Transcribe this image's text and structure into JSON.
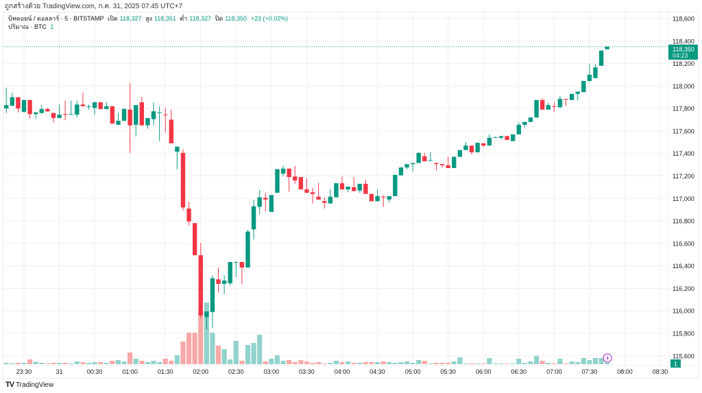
{
  "header": {
    "caption": "ถูกสร้างด้วย TradingView.com, ก.ค. 31, 2025 07:45 UTC+7"
  },
  "legend": {
    "symbol": "บิทคอยน์ / ดอลลาร์ · 5 · BITSTAMP",
    "open_label": "เปิด",
    "open": "118,327",
    "high_label": "สูง",
    "high": "118,351",
    "low_label": "ต่ำ",
    "low": "118,327",
    "close_label": "ปิด",
    "close": "118,350",
    "change": "+23 (+0.02%)",
    "volume_label": "ปริมาณ · BTC",
    "volume": "1"
  },
  "price_tag": {
    "price": "118,350",
    "countdown": "04:23"
  },
  "volume_tag": "1",
  "footer": {
    "brand": "TradingView"
  },
  "colors": {
    "up": "#089981",
    "down": "#F23645",
    "vol_up": "#92D2CC",
    "vol_down": "#F7A9A7",
    "alert": "#B24FD6"
  },
  "chart_data": {
    "type": "candlestick",
    "interval": "5m",
    "time_labels": [
      "23:30",
      "31",
      "00:30",
      "01:00",
      "01:30",
      "02:00",
      "02:30",
      "03:00",
      "03:30",
      "04:00",
      "04:30",
      "05:00",
      "05:30",
      "06:00",
      "06:30",
      "07:00",
      "07:30",
      "08:00",
      "08:30"
    ],
    "price_labels": [
      "118,600",
      "118,400",
      "118,200",
      "118,000",
      "117,800",
      "117,600",
      "117,400",
      "117,200",
      "117,000",
      "116,800",
      "116,600",
      "116,400",
      "116,200",
      "116,000",
      "115,800",
      "115,600"
    ],
    "price_range": [
      115600,
      118600
    ],
    "ohlc": [
      [
        117800,
        117985,
        117760,
        117830
      ],
      [
        117825,
        117940,
        117820,
        117900
      ],
      [
        117900,
        117900,
        117765,
        117800
      ],
      [
        117770,
        117880,
        117765,
        117875
      ],
      [
        117875,
        117875,
        117710,
        117750
      ],
      [
        117750,
        117770,
        117705,
        117765
      ],
      [
        117760,
        117830,
        117750,
        117795
      ],
      [
        117795,
        117805,
        117770,
        117775
      ],
      [
        117760,
        117760,
        117675,
        117715
      ],
      [
        117715,
        117835,
        117715,
        117745
      ],
      [
        117750,
        117870,
        117695,
        117745
      ],
      [
        117745,
        117870,
        117745,
        117750
      ],
      [
        117745,
        117870,
        117720,
        117835
      ],
      [
        117835,
        117940,
        117815,
        117820
      ],
      [
        117815,
        117835,
        117790,
        117820
      ],
      [
        117805,
        117860,
        117745,
        117855
      ],
      [
        117855,
        117855,
        117790,
        117795
      ],
      [
        117795,
        117855,
        117790,
        117820
      ],
      [
        117820,
        117820,
        117665,
        117665
      ],
      [
        117655,
        117760,
        117655,
        117690
      ],
      [
        117690,
        117805,
        117690,
        117795
      ],
      [
        117790,
        118025,
        117405,
        117650
      ],
      [
        117655,
        117830,
        117550,
        117830
      ],
      [
        117855,
        117905,
        117650,
        117650
      ],
      [
        117650,
        117715,
        117620,
        117715
      ],
      [
        117705,
        117855,
        117650,
        117775
      ],
      [
        117760,
        117820,
        117510,
        117765
      ],
      [
        117745,
        117805,
        117585,
        117740
      ],
      [
        117700,
        117790,
        117490,
        117490
      ],
      [
        117415,
        117460,
        117260,
        117460
      ],
      [
        117405,
        117435,
        116890,
        116920
      ],
      [
        116910,
        116970,
        116760,
        116795
      ],
      [
        116780,
        116780,
        116495,
        116495
      ],
      [
        116495,
        116605,
        115935,
        115960
      ],
      [
        115945,
        115995,
        115835,
        115995
      ],
      [
        115990,
        116315,
        115850,
        116290
      ],
      [
        116280,
        116385,
        116165,
        116240
      ],
      [
        116240,
        116315,
        116150,
        116270
      ],
      [
        116245,
        116435,
        116225,
        116435
      ],
      [
        116430,
        116435,
        116300,
        116435
      ],
      [
        116435,
        116435,
        116235,
        116385
      ],
      [
        116385,
        116720,
        116385,
        116705
      ],
      [
        116725,
        116990,
        116635,
        116930
      ],
      [
        116925,
        117075,
        116860,
        117010
      ],
      [
        117005,
        117050,
        116885,
        116990
      ],
      [
        116880,
        117030,
        116880,
        117030
      ],
      [
        117050,
        117260,
        117050,
        117260
      ],
      [
        117220,
        117290,
        117200,
        117265
      ],
      [
        117265,
        117265,
        117060,
        117190
      ],
      [
        117195,
        117290,
        117130,
        117160
      ],
      [
        117190,
        117190,
        117080,
        117080
      ],
      [
        117080,
        117180,
        117050,
        117050
      ],
      [
        117055,
        117095,
        116955,
        117040
      ],
      [
        117015,
        117140,
        116990,
        116990
      ],
      [
        116975,
        117010,
        116910,
        116960
      ],
      [
        116955,
        117085,
        116955,
        117015
      ],
      [
        117010,
        117135,
        117010,
        117135
      ],
      [
        117135,
        117195,
        117080,
        117080
      ],
      [
        117080,
        117105,
        117055,
        117105
      ],
      [
        117100,
        117190,
        117065,
        117065
      ],
      [
        117070,
        117130,
        117050,
        117130
      ],
      [
        117130,
        117165,
        117040,
        117040
      ],
      [
        117040,
        117040,
        116975,
        116975
      ],
      [
        116975,
        117080,
        116975,
        117020
      ],
      [
        117015,
        117030,
        116925,
        117010
      ],
      [
        116990,
        117020,
        116965,
        117020
      ],
      [
        117020,
        117210,
        117020,
        117210
      ],
      [
        117205,
        117280,
        117205,
        117275
      ],
      [
        117275,
        117305,
        117260,
        117305
      ],
      [
        117305,
        117315,
        117240,
        117315
      ],
      [
        117315,
        117410,
        117315,
        117405
      ],
      [
        117375,
        117405,
        117330,
        117330
      ],
      [
        117335,
        117410,
        117335,
        117340
      ],
      [
        117315,
        117315,
        117250,
        117305
      ],
      [
        117305,
        117305,
        117275,
        117295
      ],
      [
        117295,
        117370,
        117270,
        117270
      ],
      [
        117270,
        117370,
        117270,
        117370
      ],
      [
        117370,
        117430,
        117370,
        117430
      ],
      [
        117430,
        117500,
        117430,
        117470
      ],
      [
        117470,
        117470,
        117390,
        117410
      ],
      [
        117410,
        117495,
        117410,
        117495
      ],
      [
        117490,
        117490,
        117455,
        117470
      ],
      [
        117470,
        117570,
        117470,
        117540
      ],
      [
        117540,
        117550,
        117540,
        117545
      ],
      [
        117540,
        117555,
        117525,
        117555
      ],
      [
        117555,
        117555,
        117520,
        117520
      ],
      [
        117510,
        117570,
        117510,
        117570
      ],
      [
        117570,
        117675,
        117570,
        117655
      ],
      [
        117655,
        117680,
        117635,
        117680
      ],
      [
        117680,
        117720,
        117680,
        117720
      ],
      [
        117720,
        117875,
        117720,
        117875
      ],
      [
        117875,
        117890,
        117790,
        117790
      ],
      [
        117790,
        117850,
        117790,
        117830
      ],
      [
        117820,
        117855,
        117770,
        117815
      ],
      [
        117810,
        117910,
        117810,
        117885
      ],
      [
        117885,
        117885,
        117820,
        117880
      ],
      [
        117875,
        117930,
        117875,
        117930
      ],
      [
        117930,
        117950,
        117870,
        117950
      ],
      [
        117945,
        118045,
        117945,
        118045
      ],
      [
        118045,
        118195,
        118035,
        118100
      ],
      [
        118070,
        118195,
        118070,
        118165
      ],
      [
        118180,
        118315,
        118180,
        118315
      ],
      [
        118327,
        118351,
        118327,
        118350
      ]
    ],
    "volume": [
      2,
      1.3,
      2,
      2,
      7,
      3.5,
      2,
      1,
      2,
      2,
      2,
      1,
      4,
      3,
      2,
      3,
      3,
      2,
      5,
      6,
      4,
      17,
      8,
      5,
      3,
      5,
      3,
      8,
      5,
      13,
      33,
      46,
      46,
      76,
      90,
      46,
      27,
      22,
      7,
      34,
      5,
      28,
      31,
      43,
      4,
      8,
      13,
      5,
      6,
      3,
      6,
      4,
      2,
      3,
      1,
      2,
      5,
      3,
      4,
      2,
      2,
      3,
      3,
      3,
      4,
      3,
      2,
      3,
      4,
      2,
      6,
      5,
      1,
      2,
      2,
      2,
      4,
      10,
      1,
      1,
      1,
      1,
      9,
      1,
      1,
      1,
      1,
      8,
      2,
      4,
      12,
      5,
      2,
      1,
      8,
      1,
      4,
      3,
      9,
      6,
      9,
      9,
      2
    ]
  }
}
